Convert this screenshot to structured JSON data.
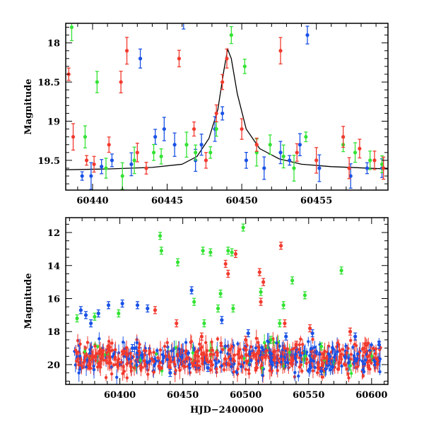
{
  "chart_data": [
    {
      "type": "scatter",
      "ylabel": "Magnitude",
      "xlabel": "",
      "xlim": [
        60438.2,
        60459.8
      ],
      "ylim": [
        17.75,
        19.88
      ],
      "y_inverted": true,
      "xticks_labeled": [
        60440,
        60445,
        60450,
        60455
      ],
      "yticks_labeled": [
        18,
        18.5,
        19,
        19.5
      ],
      "yticks_label_text": [
        "18",
        "18.5",
        "19",
        "19.5"
      ],
      "series": [
        {
          "color": "#1a52e6",
          "points": [
            [
              60439.3,
              19.7
            ],
            [
              60439.9,
              19.7
            ],
            [
              60440.6,
              19.58
            ],
            [
              60441.3,
              19.5
            ],
            [
              60442.6,
              19.55
            ],
            [
              60443.2,
              18.2
            ],
            [
              60444.2,
              19.2
            ],
            [
              60444.8,
              19.1
            ],
            [
              60445.5,
              19.3
            ],
            [
              60446.1,
              17.7
            ],
            [
              60446.9,
              19.5
            ],
            [
              60447.3,
              19.3
            ],
            [
              60448.2,
              19.1
            ],
            [
              60448.7,
              18.9
            ],
            [
              60450.3,
              19.5
            ],
            [
              60451.5,
              19.6
            ],
            [
              60452.6,
              19.4
            ],
            [
              60453.2,
              19.5
            ],
            [
              60453.9,
              19.3
            ],
            [
              60454.4,
              17.9
            ],
            [
              60455.2,
              19.6
            ],
            [
              60457.3,
              19.7
            ],
            [
              60458.4,
              19.6
            ],
            [
              60459.4,
              19.6
            ]
          ]
        },
        {
          "color": "#33e333",
          "points": [
            [
              60438.6,
              17.8
            ],
            [
              60439.5,
              19.2
            ],
            [
              60440.3,
              18.5
            ],
            [
              60440.9,
              19.6
            ],
            [
              60442.0,
              19.7
            ],
            [
              60442.8,
              19.5
            ],
            [
              60444.1,
              19.4
            ],
            [
              60444.6,
              19.45
            ],
            [
              60446.3,
              19.3
            ],
            [
              60446.9,
              19.4
            ],
            [
              60447.9,
              19.4
            ],
            [
              60448.3,
              19.1
            ],
            [
              60449.3,
              17.9
            ],
            [
              60450.2,
              18.3
            ],
            [
              60451.0,
              19.4
            ],
            [
              60451.9,
              19.3
            ],
            [
              60452.8,
              19.45
            ],
            [
              60453.5,
              19.6
            ],
            [
              60454.3,
              19.2
            ],
            [
              60456.8,
              19.3
            ],
            [
              60457.6,
              19.4
            ],
            [
              60458.6,
              19.5
            ],
            [
              60459.4,
              19.55
            ]
          ]
        },
        {
          "color": "#f23a2e",
          "points": [
            [
              60438.4,
              18.4
            ],
            [
              60438.7,
              19.2
            ],
            [
              60439.6,
              19.5
            ],
            [
              60440.1,
              19.55
            ],
            [
              60441.1,
              19.3
            ],
            [
              60441.9,
              18.5
            ],
            [
              60442.3,
              18.1
            ],
            [
              60443.0,
              19.4
            ],
            [
              60443.6,
              19.6
            ],
            [
              60445.8,
              18.2
            ],
            [
              60446.8,
              19.1
            ],
            [
              60447.6,
              19.5
            ],
            [
              60448.3,
              18.9
            ],
            [
              60448.7,
              18.5
            ],
            [
              60449.0,
              18.2
            ],
            [
              60450.0,
              19.1
            ],
            [
              60451.0,
              19.3
            ],
            [
              60452.6,
              18.1
            ],
            [
              60453.7,
              19.4
            ],
            [
              60455.0,
              19.5
            ],
            [
              60456.8,
              19.2
            ],
            [
              60457.2,
              19.6
            ],
            [
              60457.9,
              19.35
            ],
            [
              60458.9,
              19.5
            ],
            [
              60459.5,
              19.6
            ]
          ]
        }
      ],
      "model_curve": {
        "color": "#000000",
        "points": [
          [
            60438.2,
            19.62
          ],
          [
            60441,
            19.61
          ],
          [
            60444,
            19.59
          ],
          [
            60446,
            19.55
          ],
          [
            60447,
            19.45
          ],
          [
            60447.8,
            19.22
          ],
          [
            60448.4,
            18.85
          ],
          [
            60448.8,
            18.35
          ],
          [
            60449.05,
            18.08
          ],
          [
            60449.3,
            18.2
          ],
          [
            60449.7,
            18.65
          ],
          [
            60450.3,
            19.1
          ],
          [
            60451.2,
            19.35
          ],
          [
            60452.5,
            19.48
          ],
          [
            60454,
            19.55
          ],
          [
            60456,
            19.58
          ],
          [
            60459.8,
            19.61
          ]
        ]
      }
    },
    {
      "type": "scatter",
      "ylabel": "Magnitude",
      "xlabel": "HJD−2400000",
      "xlim": [
        60357,
        60613
      ],
      "ylim": [
        11.1,
        21.2
      ],
      "y_inverted": true,
      "xticks_labeled": [
        60400,
        60450,
        60500,
        60550,
        60600
      ],
      "yticks_labeled": [
        12,
        14,
        16,
        18,
        20
      ],
      "yticks_label_text": [
        "12",
        "14",
        "16",
        "18",
        "20"
      ],
      "baseline_band": {
        "y_center": 19.6,
        "y_spread": 0.9,
        "x_start": 60364,
        "x_end": 60608
      },
      "series": [
        {
          "color": "#1a52e6",
          "points": [
            [
              60369,
              16.7
            ],
            [
              60373,
              17.0
            ],
            [
              60377,
              17.5
            ],
            [
              60383,
              16.9
            ],
            [
              60391,
              16.4
            ],
            [
              60402,
              16.3
            ],
            [
              60414,
              16.4
            ],
            [
              60422,
              16.6
            ],
            [
              60457,
              15.5
            ],
            [
              60481,
              17.3
            ],
            [
              60502,
              18.1
            ],
            [
              60532,
              18.3
            ],
            [
              60553,
              18.1
            ],
            [
              60587,
              18.3
            ],
            [
              60606,
              18.8
            ],
            [
              60410,
              19.0
            ],
            [
              60440,
              20.5
            ],
            [
              60470,
              20.2
            ],
            [
              60520,
              19.8
            ],
            [
              60560,
              20.4
            ]
          ]
        },
        {
          "color": "#33e333",
          "points": [
            [
              60366,
              17.2
            ],
            [
              60380,
              17.1
            ],
            [
              60399,
              16.9
            ],
            [
              60432,
              12.2
            ],
            [
              60433,
              13.1
            ],
            [
              60446,
              13.8
            ],
            [
              60466,
              13.1
            ],
            [
              60472,
              13.2
            ],
            [
              60480,
              15.7
            ],
            [
              60486,
              13.1
            ],
            [
              60489,
              13.2
            ],
            [
              60498,
              11.7
            ],
            [
              60512,
              15.6
            ],
            [
              60527,
              17.5
            ],
            [
              60530,
              16.4
            ],
            [
              60537,
              14.9
            ],
            [
              60547,
              15.8
            ],
            [
              60576,
              14.3
            ],
            [
              60459,
              16.2
            ],
            [
              60467,
              17.5
            ],
            [
              60478,
              16.6
            ],
            [
              60490,
              16.6
            ],
            [
              60520,
              18.5
            ],
            [
              60560,
              18.9
            ]
          ]
        },
        {
          "color": "#f23a2e",
          "points": [
            [
              60428,
              16.7
            ],
            [
              60445,
              17.5
            ],
            [
              60484,
              13.9
            ],
            [
              60486,
              14.5
            ],
            [
              60492,
              13.3
            ],
            [
              60511,
              14.4
            ],
            [
              60512,
              16.2
            ],
            [
              60514,
              15.0
            ],
            [
              60528,
              12.8
            ],
            [
              60531,
              17.5
            ],
            [
              60551,
              17.8
            ],
            [
              60583,
              18.0
            ],
            [
              60465,
              18.3
            ],
            [
              60500,
              18.5
            ],
            [
              60540,
              18.8
            ]
          ]
        }
      ]
    }
  ]
}
